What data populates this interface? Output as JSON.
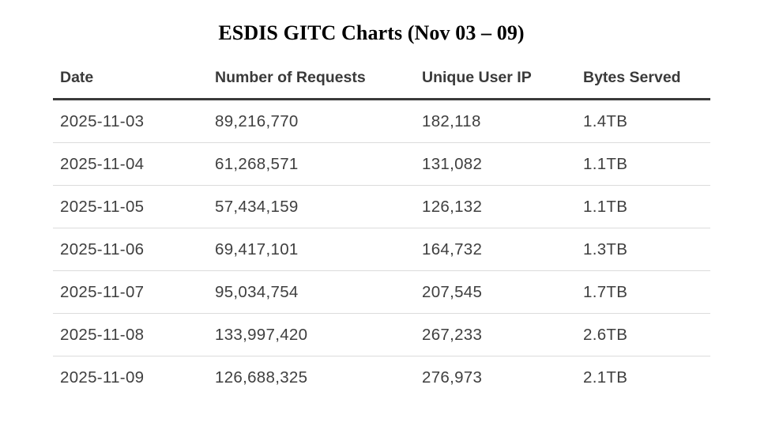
{
  "title": "ESDIS GITC Charts (Nov 03 – 09)",
  "table": {
    "headers": [
      "Date",
      "Number of Requests",
      "Unique User IP",
      "Bytes Served"
    ],
    "rows": [
      [
        "2025-11-03",
        "89,216,770",
        "182,118",
        "1.4TB"
      ],
      [
        "2025-11-04",
        "61,268,571",
        "131,082",
        "1.1TB"
      ],
      [
        "2025-11-05",
        "57,434,159",
        "126,132",
        "1.1TB"
      ],
      [
        "2025-11-06",
        "69,417,101",
        "164,732",
        "1.3TB"
      ],
      [
        "2025-11-07",
        "95,034,754",
        "207,545",
        "1.7TB"
      ],
      [
        "2025-11-08",
        "133,997,420",
        "267,233",
        "2.6TB"
      ],
      [
        "2025-11-09",
        "126,688,325",
        "276,973",
        "2.1TB"
      ]
    ]
  }
}
